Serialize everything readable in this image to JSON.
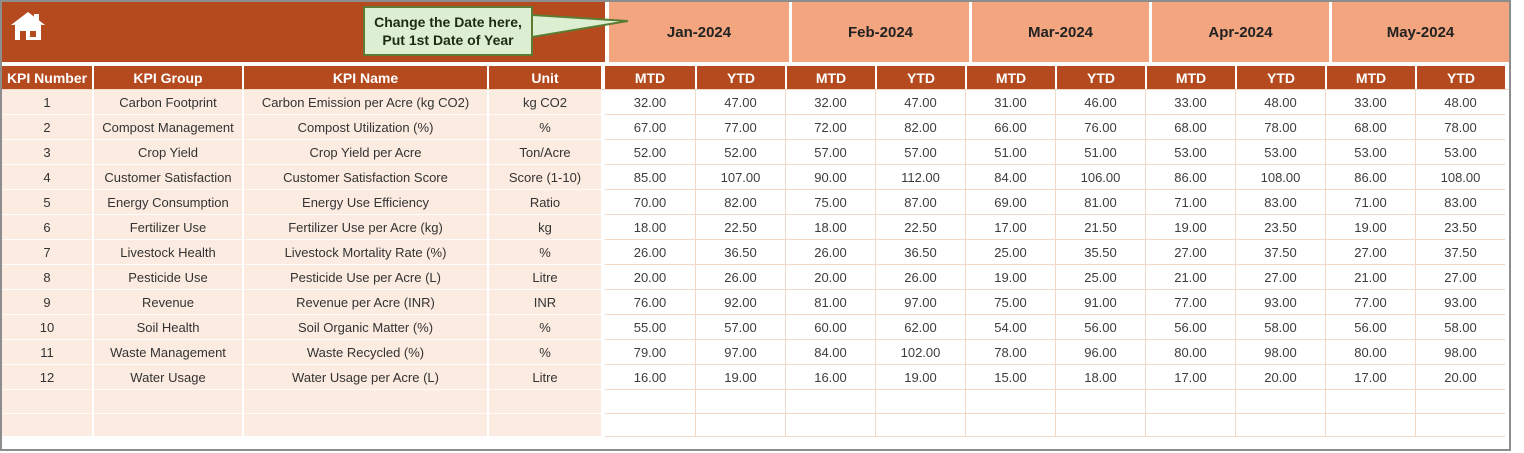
{
  "callout": {
    "line1": "Change the Date here,",
    "line2": "Put 1st Date of Year"
  },
  "colors": {
    "rust": "#b54a1e",
    "salmon": "#f2a57e",
    "peach": "#fcebe0",
    "grid": "#f3d8c5",
    "frame": "#8d8d8d",
    "callout_bg": "#dcefd3",
    "callout_border": "#5d7c33"
  },
  "table": {
    "left_headers": [
      "KPI Number",
      "KPI Group",
      "KPI Name",
      "Unit"
    ],
    "sub_headers": [
      "MTD",
      "YTD"
    ],
    "months": [
      "Jan-2024",
      "Feb-2024",
      "Mar-2024",
      "Apr-2024",
      "May-2024"
    ],
    "rows": [
      {
        "number": "1",
        "group": "Carbon Footprint",
        "name": "Carbon Emission per Acre (kg CO2)",
        "unit": "kg CO2",
        "values": [
          "32.00",
          "47.00",
          "32.00",
          "47.00",
          "31.00",
          "46.00",
          "33.00",
          "48.00",
          "33.00",
          "48.00"
        ]
      },
      {
        "number": "2",
        "group": "Compost Management",
        "name": "Compost Utilization (%)",
        "unit": "%",
        "values": [
          "67.00",
          "77.00",
          "72.00",
          "82.00",
          "66.00",
          "76.00",
          "68.00",
          "78.00",
          "68.00",
          "78.00"
        ]
      },
      {
        "number": "3",
        "group": "Crop Yield",
        "name": "Crop Yield per Acre",
        "unit": "Ton/Acre",
        "values": [
          "52.00",
          "52.00",
          "57.00",
          "57.00",
          "51.00",
          "51.00",
          "53.00",
          "53.00",
          "53.00",
          "53.00"
        ]
      },
      {
        "number": "4",
        "group": "Customer Satisfaction",
        "name": "Customer Satisfaction Score",
        "unit": "Score (1-10)",
        "values": [
          "85.00",
          "107.00",
          "90.00",
          "112.00",
          "84.00",
          "106.00",
          "86.00",
          "108.00",
          "86.00",
          "108.00"
        ]
      },
      {
        "number": "5",
        "group": "Energy Consumption",
        "name": "Energy Use Efficiency",
        "unit": "Ratio",
        "values": [
          "70.00",
          "82.00",
          "75.00",
          "87.00",
          "69.00",
          "81.00",
          "71.00",
          "83.00",
          "71.00",
          "83.00"
        ]
      },
      {
        "number": "6",
        "group": "Fertilizer Use",
        "name": "Fertilizer Use per Acre (kg)",
        "unit": "kg",
        "values": [
          "18.00",
          "22.50",
          "18.00",
          "22.50",
          "17.00",
          "21.50",
          "19.00",
          "23.50",
          "19.00",
          "23.50"
        ]
      },
      {
        "number": "7",
        "group": "Livestock Health",
        "name": "Livestock Mortality Rate (%)",
        "unit": "%",
        "values": [
          "26.00",
          "36.50",
          "26.00",
          "36.50",
          "25.00",
          "35.50",
          "27.00",
          "37.50",
          "27.00",
          "37.50"
        ]
      },
      {
        "number": "8",
        "group": "Pesticide Use",
        "name": "Pesticide Use per Acre (L)",
        "unit": "Litre",
        "values": [
          "20.00",
          "26.00",
          "20.00",
          "26.00",
          "19.00",
          "25.00",
          "21.00",
          "27.00",
          "21.00",
          "27.00"
        ]
      },
      {
        "number": "9",
        "group": "Revenue",
        "name": "Revenue per Acre (INR)",
        "unit": "INR",
        "values": [
          "76.00",
          "92.00",
          "81.00",
          "97.00",
          "75.00",
          "91.00",
          "77.00",
          "93.00",
          "77.00",
          "93.00"
        ]
      },
      {
        "number": "10",
        "group": "Soil Health",
        "name": "Soil Organic Matter (%)",
        "unit": "%",
        "values": [
          "55.00",
          "57.00",
          "60.00",
          "62.00",
          "54.00",
          "56.00",
          "56.00",
          "58.00",
          "56.00",
          "58.00"
        ]
      },
      {
        "number": "11",
        "group": "Waste Management",
        "name": "Waste Recycled (%)",
        "unit": "%",
        "values": [
          "79.00",
          "97.00",
          "84.00",
          "102.00",
          "78.00",
          "96.00",
          "80.00",
          "98.00",
          "80.00",
          "98.00"
        ]
      },
      {
        "number": "12",
        "group": "Water Usage",
        "name": "Water Usage per Acre (L)",
        "unit": "Litre",
        "values": [
          "16.00",
          "19.00",
          "16.00",
          "19.00",
          "15.00",
          "18.00",
          "17.00",
          "20.00",
          "17.00",
          "20.00"
        ]
      }
    ]
  }
}
